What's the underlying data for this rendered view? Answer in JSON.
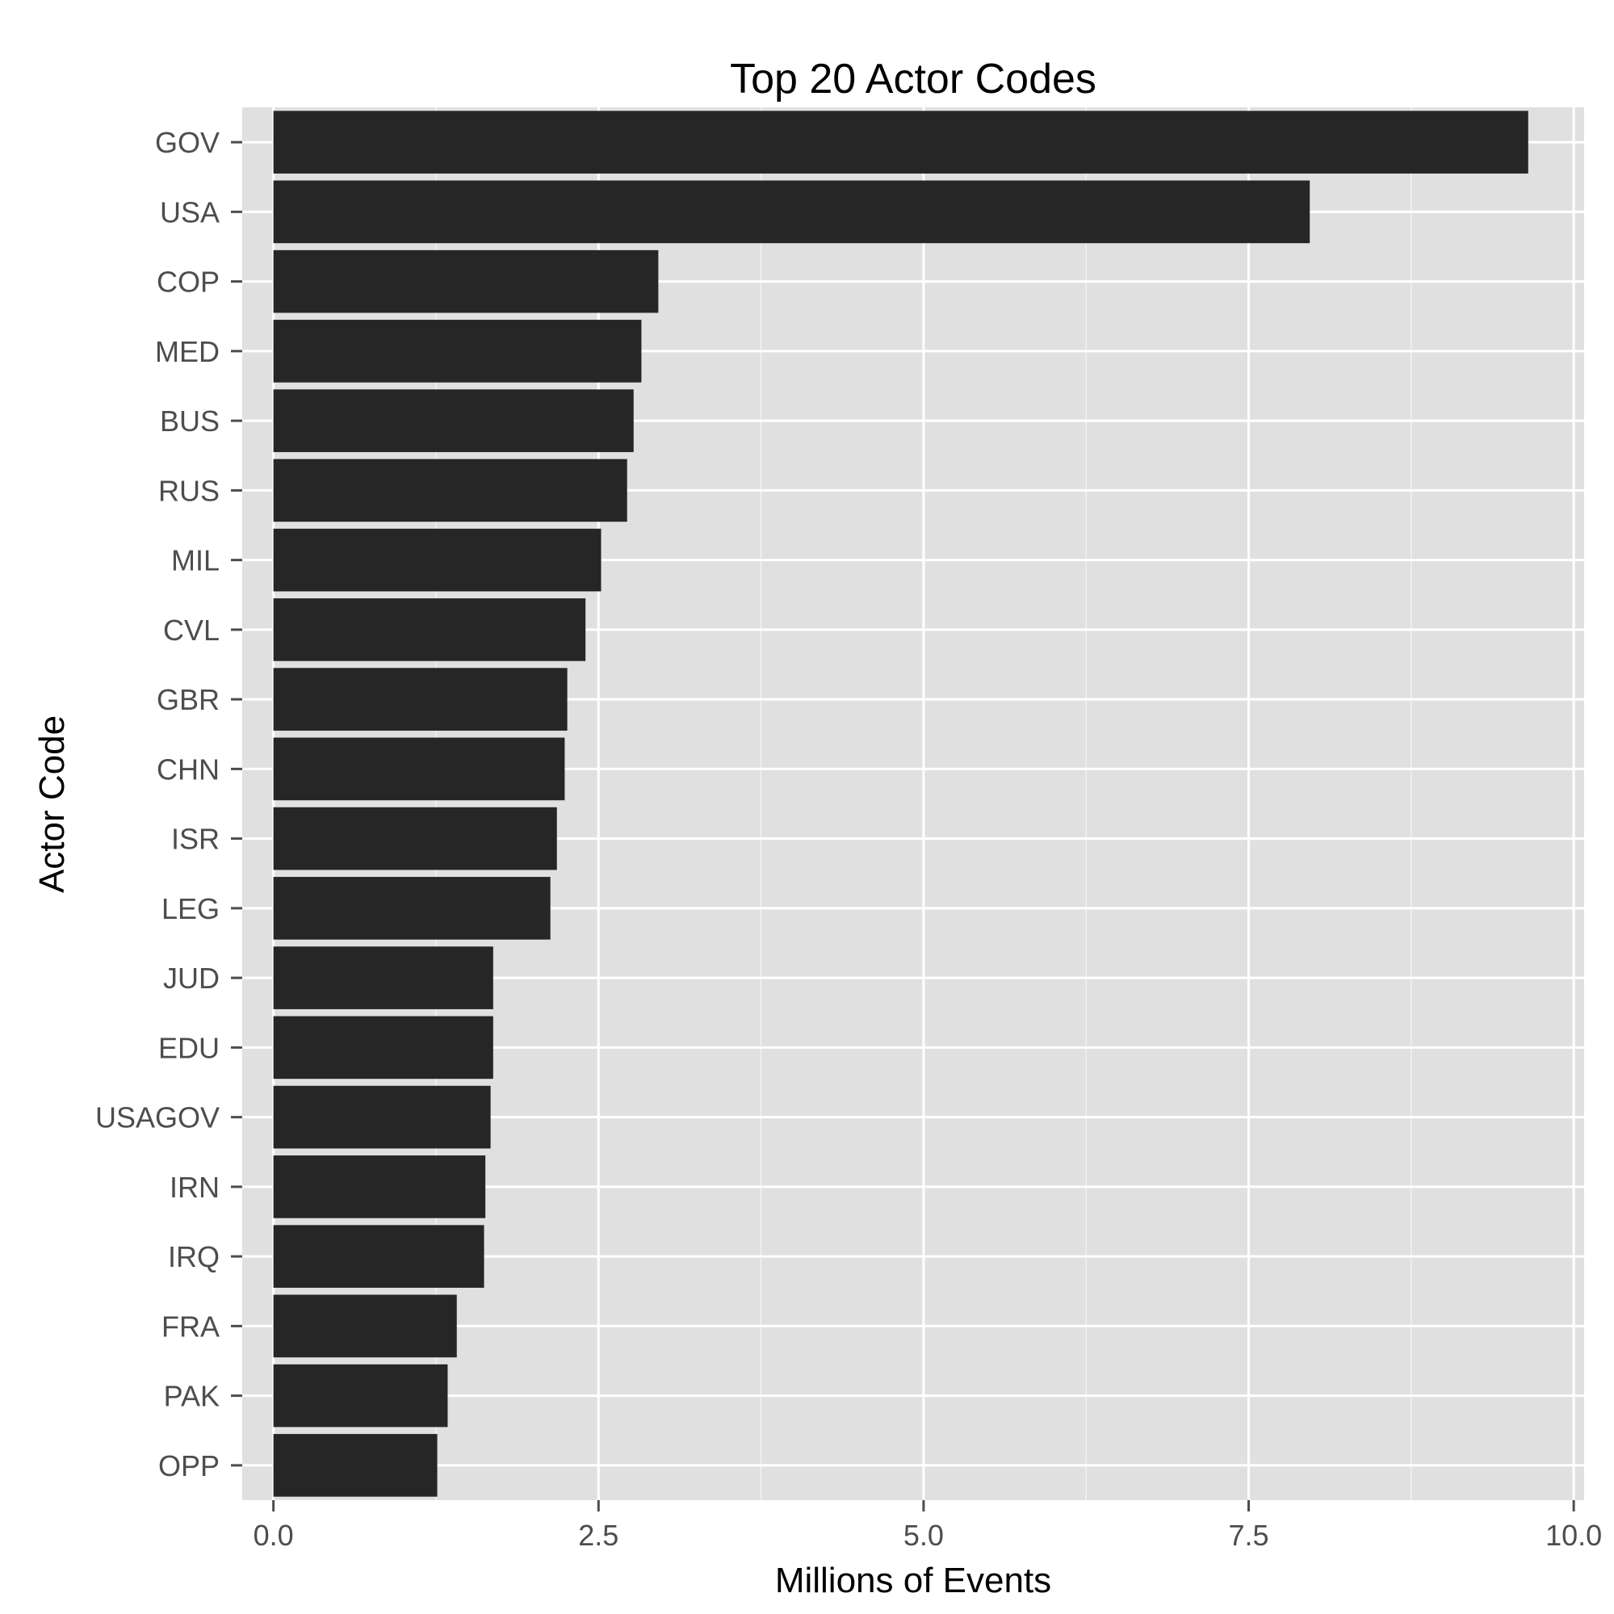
{
  "chart_data": {
    "type": "bar",
    "orientation": "horizontal",
    "title": "Top 20 Actor Codes",
    "xlabel": "Millions of Events",
    "ylabel": "Actor Code",
    "xlim": [
      -0.24,
      10.08
    ],
    "xticks": [
      0.0,
      2.5,
      5.0,
      7.5,
      10.0
    ],
    "xtick_labels": [
      "0.0",
      "2.5",
      "5.0",
      "7.5",
      "10.0"
    ],
    "grid": true,
    "panel_background": "#e0e0e0",
    "bar_color": "#262626",
    "categories": [
      "GOV",
      "USA",
      "COP",
      "MED",
      "BUS",
      "RUS",
      "MIL",
      "CVL",
      "GBR",
      "CHN",
      "ISR",
      "LEG",
      "JUD",
      "EDU",
      "USAGOV",
      "IRN",
      "IRQ",
      "FRA",
      "PAK",
      "OPP"
    ],
    "values": [
      9.65,
      7.97,
      2.96,
      2.83,
      2.77,
      2.72,
      2.52,
      2.4,
      2.26,
      2.24,
      2.18,
      2.13,
      1.69,
      1.69,
      1.67,
      1.63,
      1.62,
      1.41,
      1.34,
      1.26
    ]
  }
}
